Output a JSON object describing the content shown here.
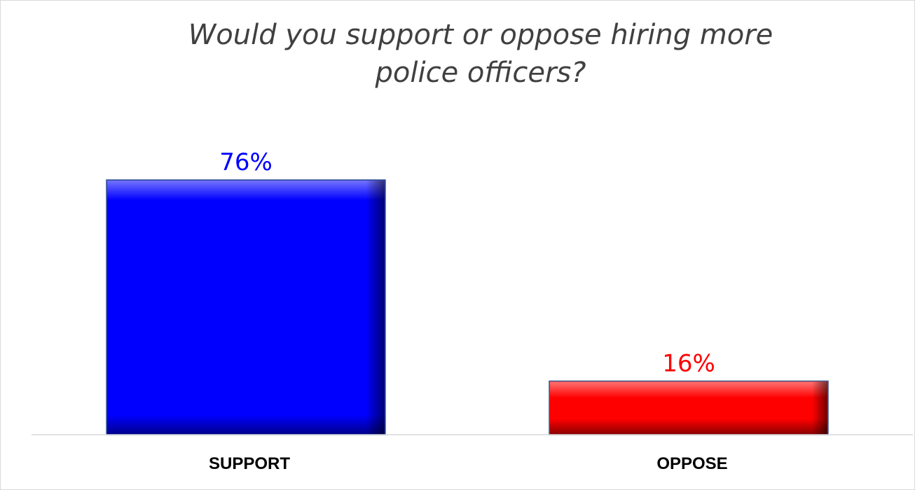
{
  "chart_data": {
    "type": "bar",
    "title": "Would you support or oppose hiring more police officers?",
    "title_lines": [
      "Would you support or oppose hiring more",
      "police officers?"
    ],
    "categories": [
      "SUPPORT",
      "OPPOSE"
    ],
    "values": [
      76,
      16
    ],
    "value_labels": [
      "76%",
      "16%"
    ],
    "colors": [
      "#0000ff",
      "#ff0000"
    ],
    "ylim": [
      0,
      90
    ],
    "grid": false,
    "legend": "none"
  }
}
